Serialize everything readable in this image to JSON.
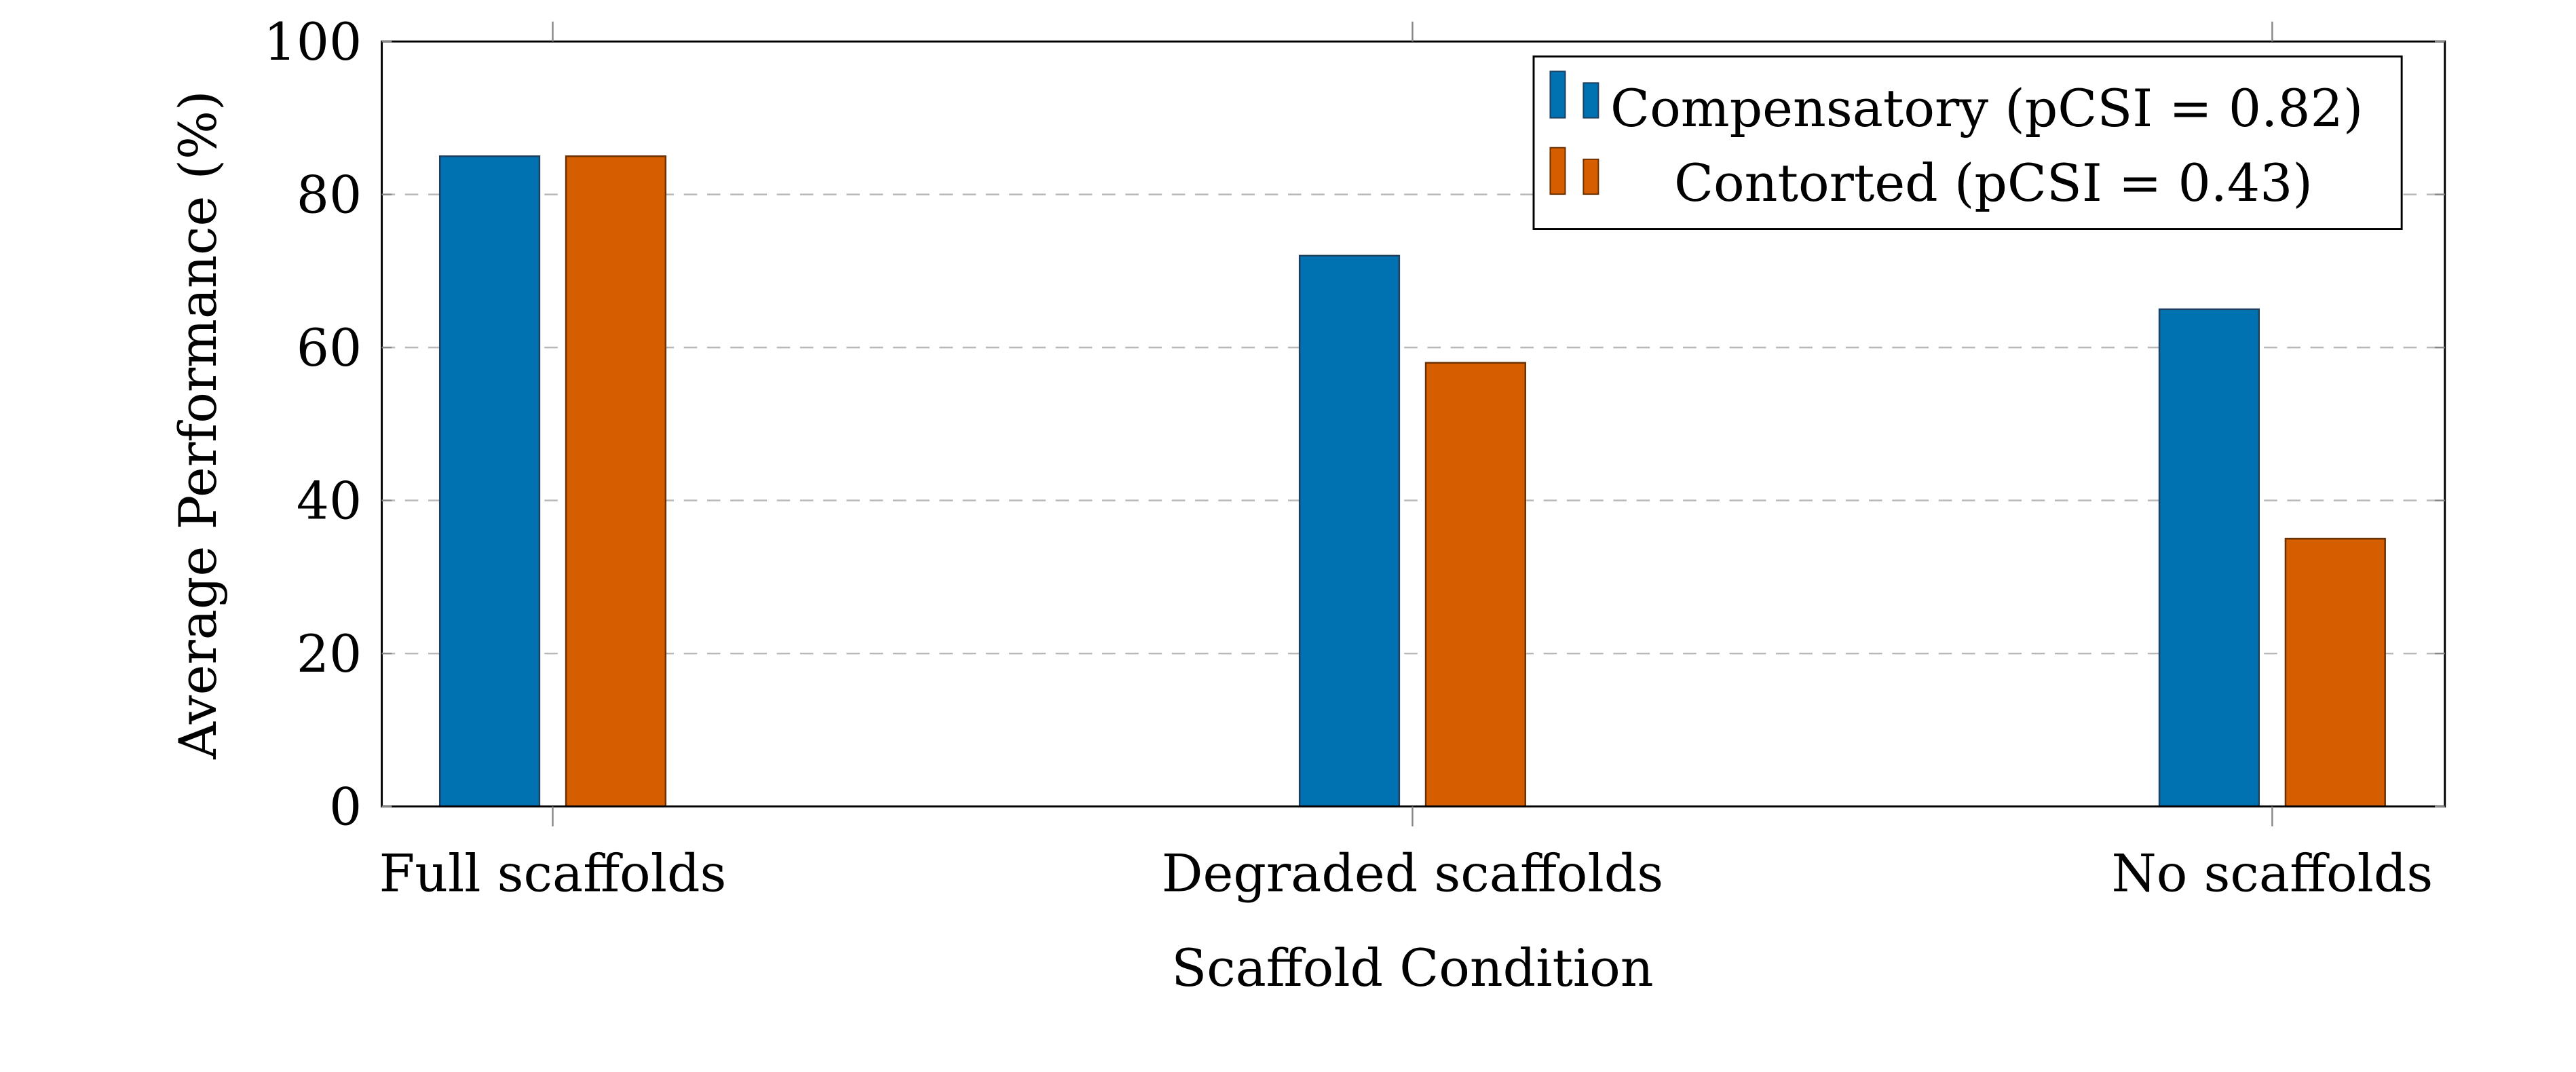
{
  "chart_data": {
    "type": "bar",
    "title": "",
    "xlabel": "Scaffold Condition",
    "ylabel": "Average Performance (%)",
    "ylim": [
      0,
      100
    ],
    "yticks": [
      0,
      20,
      40,
      60,
      80,
      100
    ],
    "ytick_labels": [
      "0",
      "20",
      "40",
      "60",
      "80",
      "100"
    ],
    "grid": "horizontal dashed",
    "legend_position": "top-right",
    "categories": [
      "Full scaffolds",
      "Degraded scaffolds",
      "No scaffolds"
    ],
    "series": [
      {
        "name": "Compensatory (pCSI = 0.82)",
        "color": "#0072b2",
        "edge": "#1f3f5f",
        "values": [
          85,
          72,
          65
        ]
      },
      {
        "name": "Contorted (pCSI = 0.43)",
        "color": "#d55e00",
        "edge": "#6b3000",
        "values": [
          85,
          58,
          35
        ]
      }
    ]
  }
}
